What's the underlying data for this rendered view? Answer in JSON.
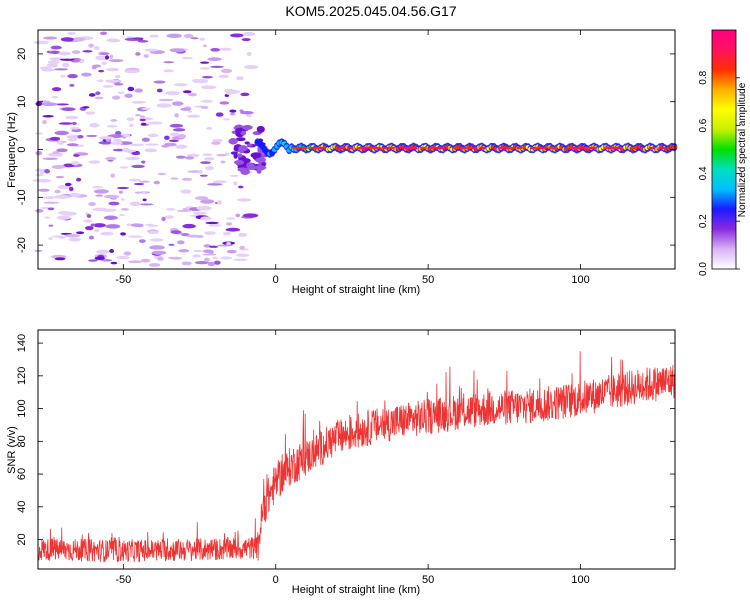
{
  "title": "KOM5.2025.045.04.56.G17",
  "chart_data": [
    {
      "type": "heatmap",
      "xlabel": "Height of straight line (km)",
      "ylabel": "Frequency (Hz)",
      "xlim": [
        -78,
        131
      ],
      "ylim": [
        -25,
        25
      ],
      "x_ticks": [
        -50,
        0,
        50,
        100
      ],
      "y_ticks": [
        -20,
        -10,
        0,
        10,
        20
      ],
      "colorbar": {
        "label": "Normalized spectral amplitude",
        "range": [
          0,
          1
        ],
        "ticks": [
          0.0,
          0.2,
          0.4,
          0.6,
          0.8
        ],
        "colors": [
          "#ffffff",
          "#d8b4f5",
          "#8a2be2",
          "#1a1aff",
          "#00bfff",
          "#00e0c0",
          "#00e000",
          "#c8f000",
          "#ffff00",
          "#ffb000",
          "#ff3000",
          "#ff1060",
          "#ff0080"
        ]
      },
      "description_of_signal": "noise below about -5 km; narrow line near 0 Hz above about -5 km",
      "line_frequency_hz": 0.3
    },
    {
      "type": "line",
      "xlabel": "Height of straight line (km)",
      "ylabel": "SNR (v/v)",
      "xlim": [
        -78,
        131
      ],
      "ylim": [
        2,
        148
      ],
      "x_ticks": [
        -50,
        0,
        50,
        100
      ],
      "y_ticks": [
        20,
        40,
        60,
        80,
        100,
        120,
        140
      ],
      "line_color": "#ee3333",
      "envelope": [
        {
          "x": -78,
          "y": 14
        },
        {
          "x": -50,
          "y": 13
        },
        {
          "x": -20,
          "y": 14
        },
        {
          "x": -6,
          "y": 15
        },
        {
          "x": -4,
          "y": 40
        },
        {
          "x": 0,
          "y": 55
        },
        {
          "x": 5,
          "y": 65
        },
        {
          "x": 10,
          "y": 70
        },
        {
          "x": 15,
          "y": 76
        },
        {
          "x": 20,
          "y": 82
        },
        {
          "x": 30,
          "y": 88
        },
        {
          "x": 40,
          "y": 92
        },
        {
          "x": 50,
          "y": 95
        },
        {
          "x": 60,
          "y": 98
        },
        {
          "x": 70,
          "y": 100
        },
        {
          "x": 80,
          "y": 101
        },
        {
          "x": 90,
          "y": 103
        },
        {
          "x": 100,
          "y": 106
        },
        {
          "x": 110,
          "y": 110
        },
        {
          "x": 120,
          "y": 114
        },
        {
          "x": 131,
          "y": 117
        }
      ]
    }
  ]
}
